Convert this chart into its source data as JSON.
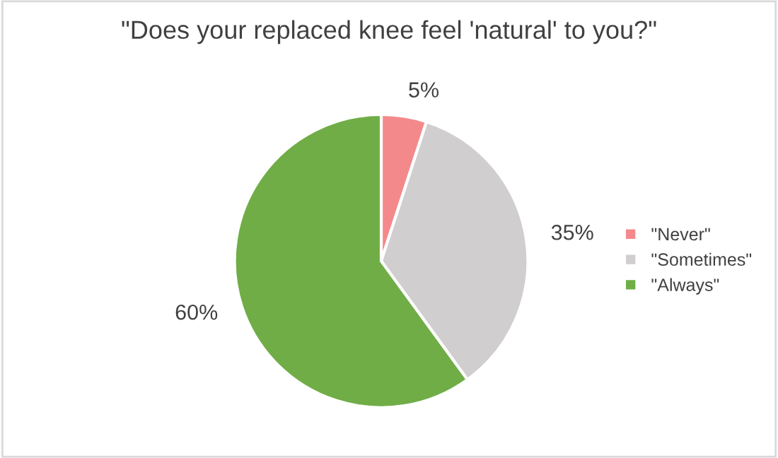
{
  "chart_data": {
    "type": "pie",
    "title": "\"Does your replaced knee feel 'natural' to you?\"",
    "categories": [
      "\"Never\"",
      "\"Sometimes\"",
      "\"Always\""
    ],
    "values": [
      5,
      35,
      60
    ],
    "value_labels": [
      "5%",
      "35%",
      "60%"
    ],
    "colors": [
      "#f4898b",
      "#d0cece",
      "#70ad47"
    ],
    "legend": "right"
  }
}
